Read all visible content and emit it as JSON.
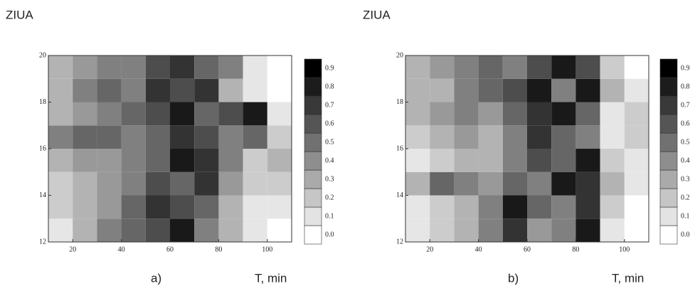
{
  "chart_data": [
    {
      "type": "contour",
      "y_label": "ZIUA",
      "x_label": "T, min",
      "caption": "a)",
      "xlim": [
        10,
        110
      ],
      "ylim": [
        12,
        20
      ],
      "xticks": [
        20,
        40,
        60,
        80,
        100
      ],
      "yticks": [
        12,
        14,
        16,
        18,
        20
      ],
      "x_edges": [
        10,
        20,
        30,
        40,
        50,
        60,
        70,
        80,
        90,
        100,
        110
      ],
      "y_edges": [
        12,
        13,
        14,
        15,
        16,
        17,
        18,
        19,
        20
      ],
      "z": [
        [
          0.1,
          0.3,
          0.5,
          0.6,
          0.7,
          0.9,
          0.5,
          0.3,
          0.1,
          0.0
        ],
        [
          0.2,
          0.3,
          0.4,
          0.6,
          0.8,
          0.7,
          0.6,
          0.3,
          0.1,
          0.1
        ],
        [
          0.2,
          0.3,
          0.4,
          0.5,
          0.7,
          0.6,
          0.8,
          0.4,
          0.2,
          0.2
        ],
        [
          0.3,
          0.4,
          0.4,
          0.5,
          0.6,
          0.9,
          0.8,
          0.5,
          0.2,
          0.3
        ],
        [
          0.5,
          0.6,
          0.6,
          0.5,
          0.6,
          0.8,
          0.7,
          0.5,
          0.6,
          0.2
        ],
        [
          0.3,
          0.4,
          0.5,
          0.6,
          0.7,
          0.9,
          0.6,
          0.7,
          0.9,
          0.1
        ],
        [
          0.3,
          0.5,
          0.6,
          0.5,
          0.8,
          0.7,
          0.8,
          0.3,
          0.1,
          0.0
        ],
        [
          0.3,
          0.4,
          0.5,
          0.5,
          0.7,
          0.8,
          0.6,
          0.5,
          0.1,
          0.0
        ]
      ],
      "colorbar_ticks": [
        {
          "value": 0,
          "label": "0.0"
        },
        {
          "value": 0.1,
          "label": "0.1"
        },
        {
          "value": 0.2,
          "label": "0.2"
        },
        {
          "value": 0.3,
          "label": "0.3"
        },
        {
          "value": 0.4,
          "label": "0.4"
        },
        {
          "value": 0.5,
          "label": "0.5"
        },
        {
          "value": 0.6,
          "label": "0.6"
        },
        {
          "value": 0.7,
          "label": "0.7"
        },
        {
          "value": 0.8,
          "label": "0.8"
        },
        {
          "value": 0.9,
          "label": "0.9"
        }
      ]
    },
    {
      "type": "contour",
      "y_label": "ZIUA",
      "x_label": "T, min",
      "caption": "b)",
      "xlim": [
        10,
        110
      ],
      "ylim": [
        12,
        20
      ],
      "xticks": [
        20,
        40,
        60,
        80,
        100
      ],
      "yticks": [
        12,
        14,
        16,
        18,
        20
      ],
      "x_edges": [
        10,
        20,
        30,
        40,
        50,
        60,
        70,
        80,
        90,
        100,
        110
      ],
      "y_edges": [
        12,
        13,
        14,
        15,
        16,
        17,
        18,
        19,
        20
      ],
      "z": [
        [
          0.1,
          0.2,
          0.3,
          0.5,
          0.8,
          0.4,
          0.5,
          0.9,
          0.1,
          0.0
        ],
        [
          0.1,
          0.2,
          0.3,
          0.5,
          0.9,
          0.6,
          0.5,
          0.8,
          0.2,
          0.0
        ],
        [
          0.3,
          0.6,
          0.5,
          0.4,
          0.6,
          0.5,
          0.9,
          0.8,
          0.3,
          0.1
        ],
        [
          0.1,
          0.2,
          0.3,
          0.3,
          0.5,
          0.7,
          0.6,
          0.9,
          0.2,
          0.1
        ],
        [
          0.2,
          0.3,
          0.4,
          0.3,
          0.5,
          0.8,
          0.6,
          0.5,
          0.1,
          0.2
        ],
        [
          0.3,
          0.4,
          0.5,
          0.4,
          0.6,
          0.8,
          0.9,
          0.6,
          0.1,
          0.2
        ],
        [
          0.3,
          0.3,
          0.5,
          0.6,
          0.7,
          0.9,
          0.5,
          0.9,
          0.3,
          0.1
        ],
        [
          0.3,
          0.4,
          0.5,
          0.6,
          0.5,
          0.7,
          0.9,
          0.7,
          0.2,
          0.0
        ]
      ],
      "colorbar_ticks": [
        {
          "value": 0,
          "label": "0.0"
        },
        {
          "value": 0.1,
          "label": "0.1"
        },
        {
          "value": 0.2,
          "label": "0.2"
        },
        {
          "value": 0.3,
          "label": "0.3"
        },
        {
          "value": 0.4,
          "label": "0.4"
        },
        {
          "value": 0.5,
          "label": "0.5"
        },
        {
          "value": 0.6,
          "label": "0.6"
        },
        {
          "value": 0.7,
          "label": "0.7"
        },
        {
          "value": 0.8,
          "label": "0.8"
        },
        {
          "value": 0.9,
          "label": "0.9"
        }
      ]
    }
  ]
}
